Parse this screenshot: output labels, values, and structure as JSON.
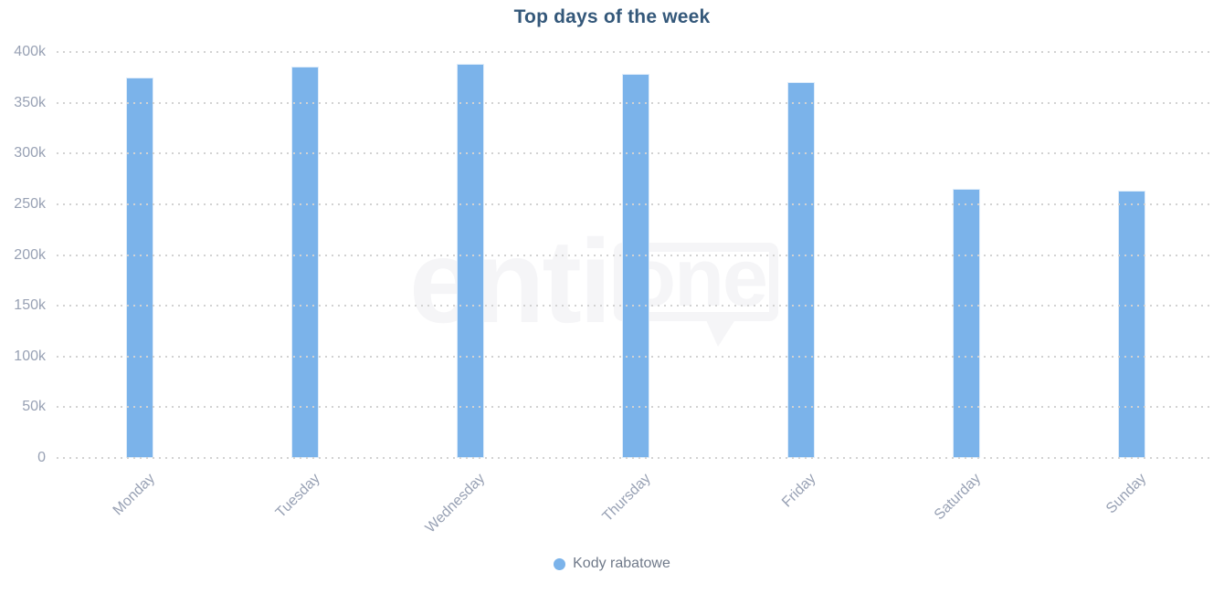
{
  "title": "Top days of the week",
  "watermark": {
    "text_left": "senti",
    "text_bubble": "one"
  },
  "legend": {
    "items": [
      {
        "label": "Kody rabatowe",
        "color": "#7bb3ea"
      }
    ]
  },
  "chart_data": {
    "type": "bar",
    "title": "Top days of the week",
    "categories": [
      "Monday",
      "Tuesday",
      "Wednesday",
      "Thursday",
      "Friday",
      "Saturday",
      "Sunday"
    ],
    "series": [
      {
        "name": "Kody rabatowe",
        "color": "#7bb3ea",
        "values": [
          375000,
          386000,
          388000,
          378000,
          370000,
          265000,
          263000
        ]
      }
    ],
    "xlabel": "",
    "ylabel": "",
    "ylim": [
      0,
      400000
    ],
    "ytick_step": 50000,
    "ytick_labels": [
      "0",
      "50k",
      "100k",
      "150k",
      "200k",
      "250k",
      "300k",
      "350k",
      "400k"
    ],
    "grid": "horizontal-dotted",
    "grid_on": true,
    "legend_position": "bottom-center",
    "x_label_rotation": -45
  },
  "colors": {
    "background": "#ffffff",
    "bar": "#7bb3ea",
    "title": "#34587a",
    "axis_label": "#98a1b4",
    "gridline": "#d2d2d2",
    "legend_text": "#707a8a",
    "watermark": "#f5f5f7"
  }
}
